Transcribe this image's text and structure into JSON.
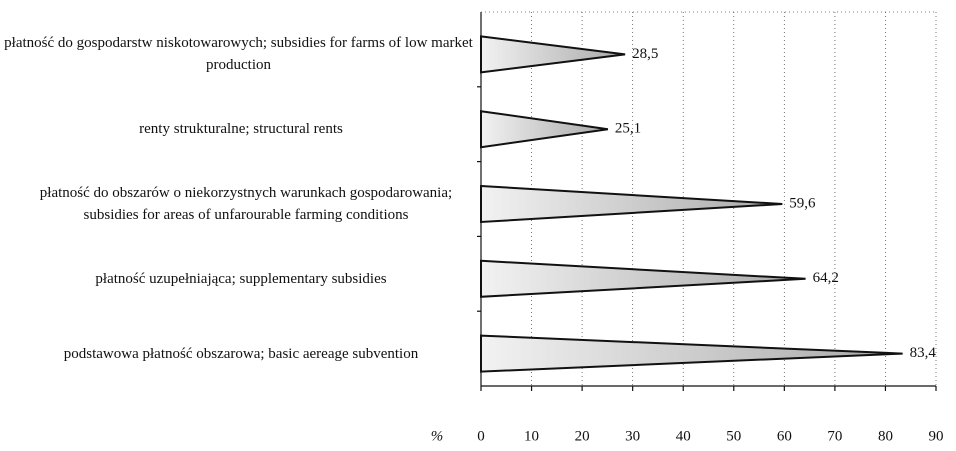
{
  "chart_data": {
    "type": "bar",
    "orientation": "horizontal",
    "categories": [
      "płatność do gospodarstw niskotowarowych; subsidies for farms of low market production",
      "renty strukturalne; structural rents",
      "płatność do obszarów o niekorzystnych warunkach gospodarowania; subsidies for areas of unfarourable farming conditions",
      "płatność uzupełniająca; supplementary subsidies",
      "podstawowa płatność obszarowa; basic aereage subvention"
    ],
    "values": [
      28.5,
      25.1,
      59.6,
      64.2,
      83.4
    ],
    "value_labels": [
      "28,5",
      "25,1",
      "59,6",
      "64,2",
      "83,4"
    ],
    "x_label": "%",
    "xlim": [
      0,
      90
    ],
    "xticks": [
      0,
      10,
      20,
      30,
      40,
      50,
      60,
      70,
      80,
      90
    ],
    "color": "#d9d9d9",
    "grid": true
  }
}
